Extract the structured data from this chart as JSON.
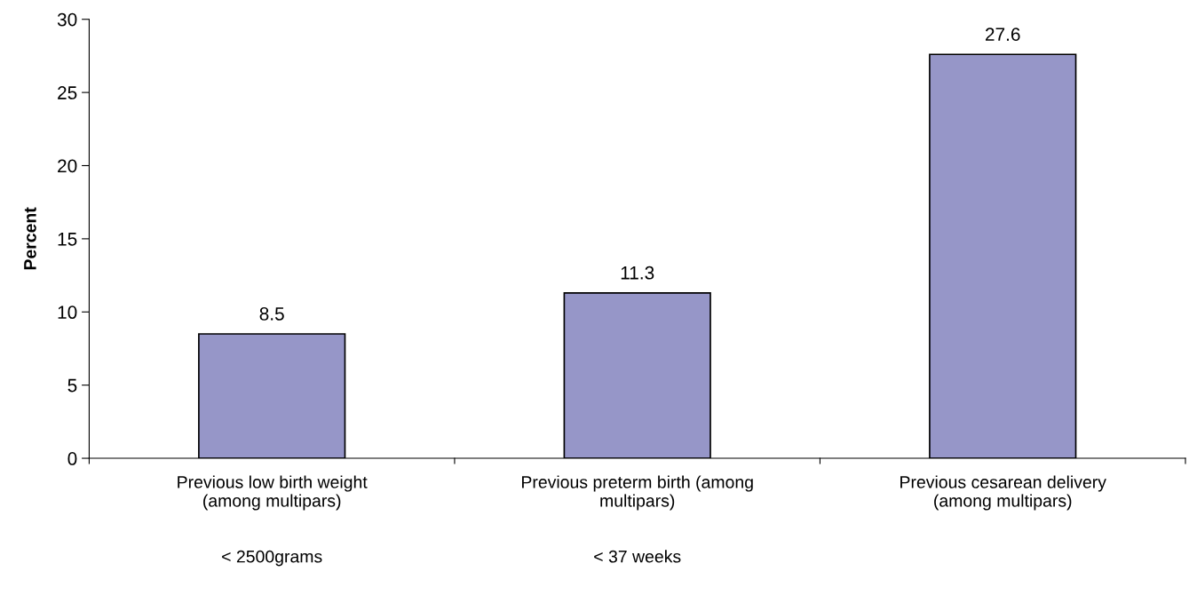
{
  "chart_data": {
    "type": "bar",
    "categories": [
      "Previous low birth weight\n(among multipars)\n\n\n< 2500grams",
      "Previous preterm birth (among\nmultipars)\n\n\n< 37 weeks",
      "Previous cesarean delivery\n(among multipars)"
    ],
    "values": [
      8.5,
      11.3,
      27.6
    ],
    "color": "#9696c8",
    "ylabel": "Percent",
    "ylim": [
      0,
      30
    ],
    "yticks": [
      0,
      5,
      10,
      15,
      20,
      25,
      30
    ],
    "data_labels": true,
    "grid": false,
    "legend": false
  }
}
